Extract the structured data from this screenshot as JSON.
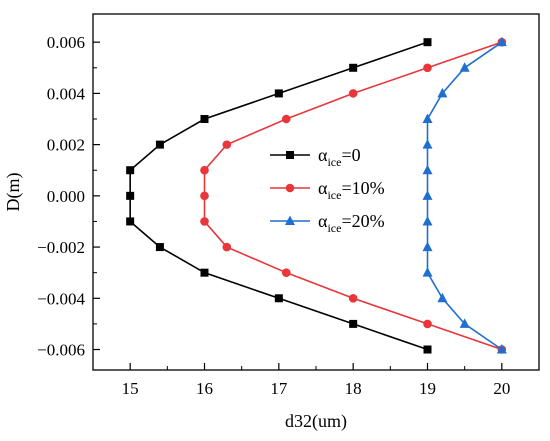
{
  "chart_data": {
    "type": "line",
    "xlabel": "d32(um)",
    "ylabel": "D(m)",
    "xlim": [
      14.5,
      20.5
    ],
    "ylim": [
      -0.0068,
      0.0071
    ],
    "x_ticks": [
      15,
      16,
      17,
      18,
      19,
      20
    ],
    "x_tick_labels": [
      "15",
      "16",
      "17",
      "18",
      "19",
      "20"
    ],
    "y_ticks": [
      -0.006,
      -0.004,
      -0.002,
      0.0,
      0.002,
      0.004,
      0.006
    ],
    "y_tick_labels": [
      "−0.006",
      "−0.004",
      "−0.002",
      "0.000",
      "0.002",
      "0.004",
      "0.006"
    ],
    "grid": false,
    "legend_position": "center",
    "series": [
      {
        "name": "αice=0",
        "legend_main": "α",
        "legend_sub": "ice",
        "legend_tail": "=0",
        "color": "#000000",
        "marker": "square",
        "points": [
          [
            19,
            0.006
          ],
          [
            18,
            0.005
          ],
          [
            17,
            0.004
          ],
          [
            16,
            0.003
          ],
          [
            15.4,
            0.002
          ],
          [
            15,
            0.001
          ],
          [
            15,
            0.0
          ],
          [
            15,
            -0.001
          ],
          [
            15.4,
            -0.002
          ],
          [
            16,
            -0.003
          ],
          [
            17,
            -0.004
          ],
          [
            18,
            -0.005
          ],
          [
            19,
            -0.006
          ]
        ]
      },
      {
        "name": "αice=10%",
        "legend_main": "α",
        "legend_sub": "ice",
        "legend_tail": "=10%",
        "color": "#e8363a",
        "marker": "circle",
        "points": [
          [
            20,
            0.006
          ],
          [
            19,
            0.005
          ],
          [
            18,
            0.004
          ],
          [
            17.1,
            0.003
          ],
          [
            16.3,
            0.002
          ],
          [
            16,
            0.001
          ],
          [
            16,
            0.0
          ],
          [
            16,
            -0.001
          ],
          [
            16.3,
            -0.002
          ],
          [
            17.1,
            -0.003
          ],
          [
            18,
            -0.004
          ],
          [
            19,
            -0.005
          ],
          [
            20,
            -0.006
          ]
        ]
      },
      {
        "name": "αice=20%",
        "legend_main": "α",
        "legend_sub": "ice",
        "legend_tail": "=20%",
        "color": "#1f6fd1",
        "marker": "triangle",
        "points": [
          [
            20,
            0.006
          ],
          [
            19.5,
            0.005
          ],
          [
            19.2,
            0.004
          ],
          [
            19,
            0.003
          ],
          [
            19,
            0.002
          ],
          [
            19,
            0.001
          ],
          [
            19,
            0.0
          ],
          [
            19,
            -0.001
          ],
          [
            19,
            -0.002
          ],
          [
            19,
            -0.003
          ],
          [
            19.2,
            -0.004
          ],
          [
            19.5,
            -0.005
          ],
          [
            20,
            -0.006
          ]
        ]
      }
    ]
  }
}
